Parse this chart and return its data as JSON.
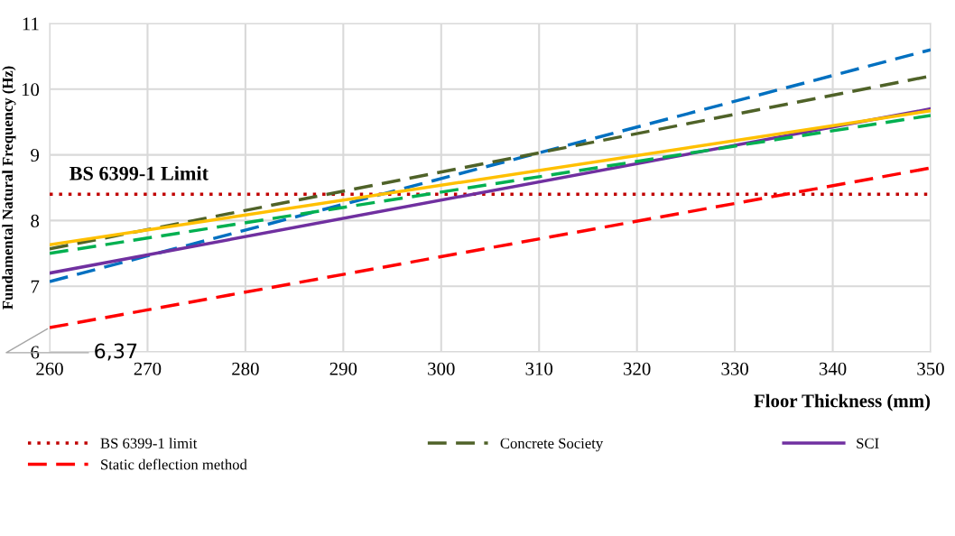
{
  "chart_data": {
    "type": "line",
    "xlabel": "Floor Thickness (mm)",
    "ylabel": "Fundamental Natural Frequency (Hz)",
    "x": [
      260,
      350
    ],
    "xlim": [
      260,
      350
    ],
    "xticks": [
      260,
      270,
      280,
      290,
      300,
      310,
      320,
      330,
      340,
      350
    ],
    "ylim": [
      6,
      11
    ],
    "yticks": [
      6,
      7,
      8,
      9,
      10,
      11
    ],
    "grid": true,
    "legend": "bottom",
    "marker": "none",
    "series": [
      {
        "name": "BS 6399-1 limit",
        "color": "#c00000",
        "line_style": "dotted",
        "values": [
          8.4,
          8.4
        ]
      },
      {
        "color": "#0070c0",
        "line_style": "dashed",
        "values": [
          7.07,
          10.6
        ]
      },
      {
        "name": "Static deflection method",
        "color": "#ff0000",
        "line_style": "dashed",
        "values": [
          6.37,
          8.8
        ]
      },
      {
        "name": "Concrete Society",
        "color": "#4f6228",
        "line_style": "dashed",
        "values": [
          7.57,
          10.2
        ]
      },
      {
        "name": "SCI",
        "color": "#7030a0",
        "line_style": "solid",
        "values": [
          7.2,
          9.7
        ]
      },
      {
        "color": "#00b050",
        "line_style": "dashed",
        "values": [
          7.5,
          9.6
        ]
      },
      {
        "color": "#ffc000",
        "line_style": "solid",
        "values": [
          7.63,
          9.67
        ]
      }
    ],
    "annotations": [
      {
        "text": "BS 6399-1 Limit",
        "x": 262,
        "y": 8.4
      },
      {
        "text": "6,37",
        "x": 260,
        "y": 6.37
      }
    ]
  }
}
